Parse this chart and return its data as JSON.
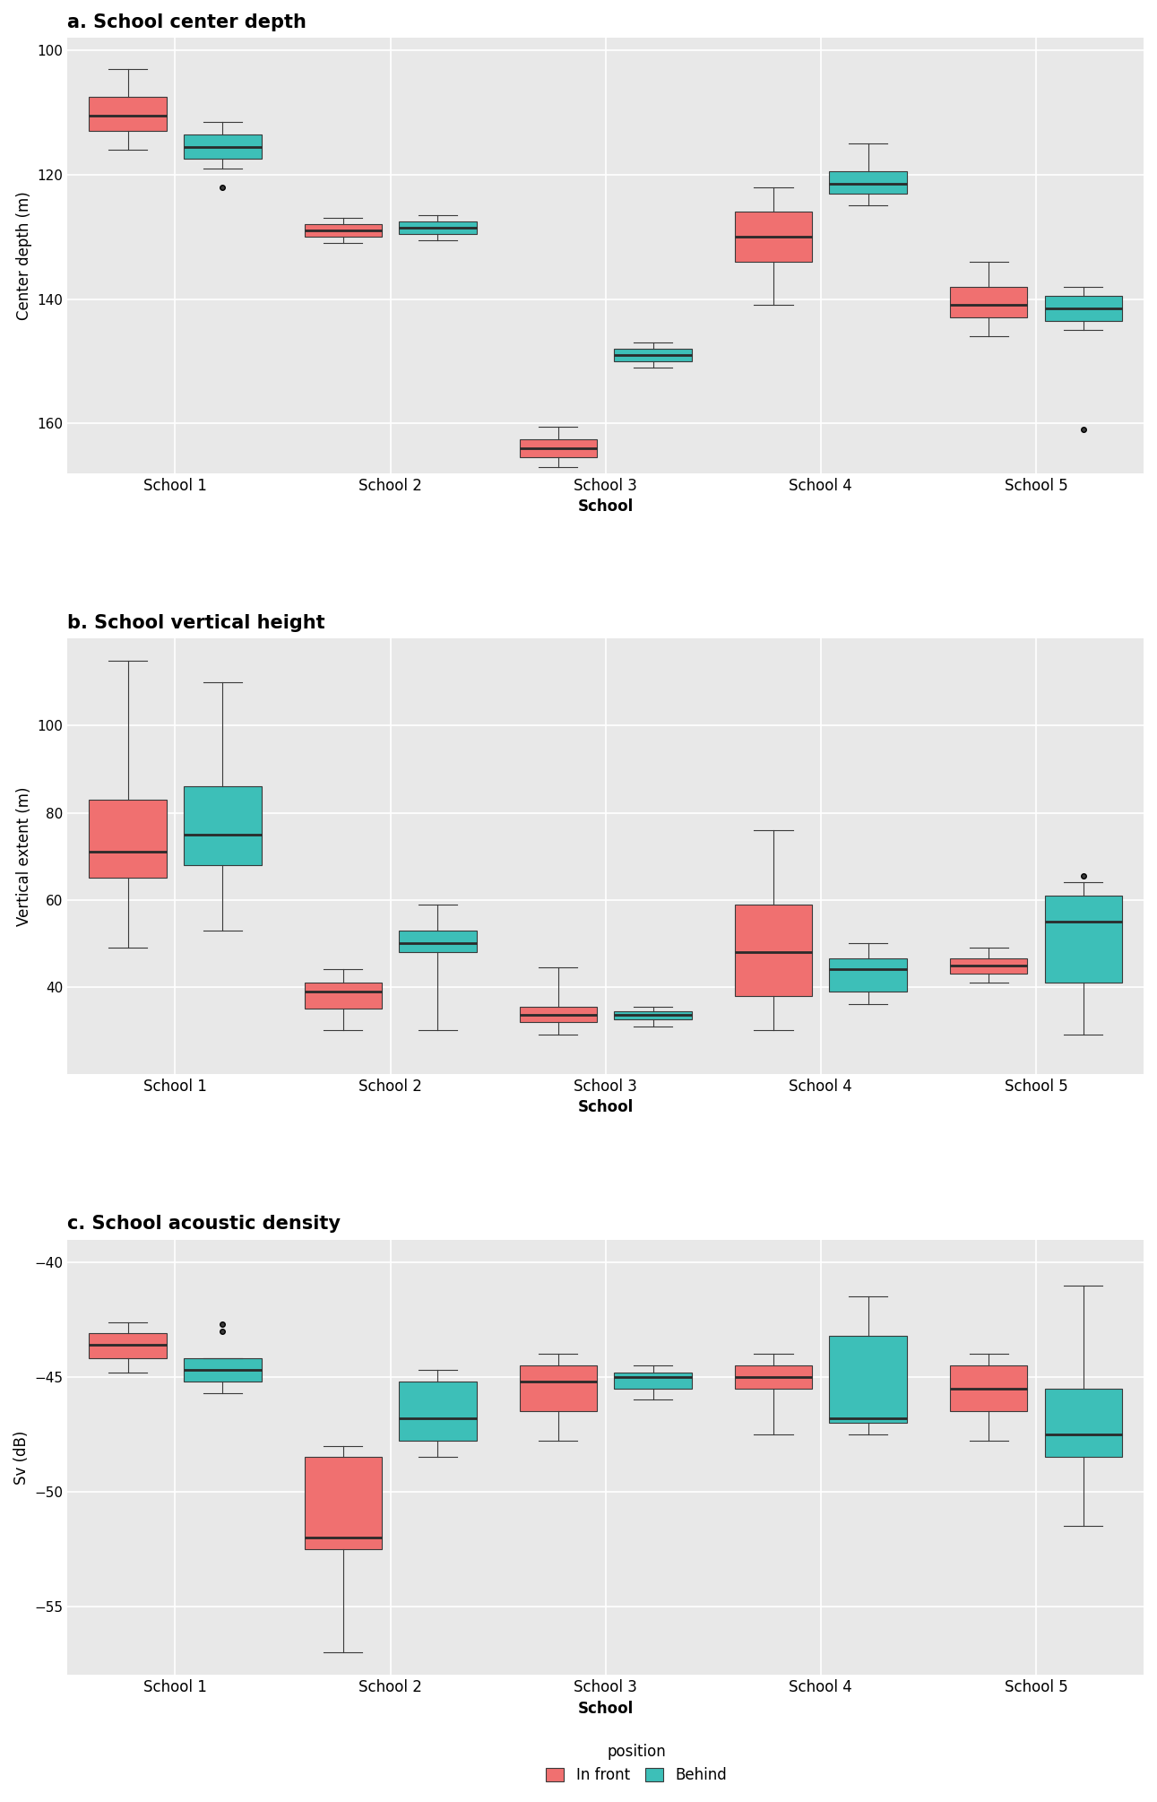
{
  "title_a": "a. School center depth",
  "title_b": "b. School vertical height",
  "title_c": "c. School acoustic density",
  "ylabel_a": "Center depth (m)",
  "ylabel_b": "Vertical extent (m)",
  "ylabel_c": "Sv (dB)",
  "xlabel": "School",
  "schools": [
    "School 1",
    "School 2",
    "School 3",
    "School 4",
    "School 5"
  ],
  "color_infront": "#F07070",
  "color_behind": "#3DBFB8",
  "legend_title": "position",
  "legend_labels": [
    "In front",
    "Behind"
  ],
  "background_color": "#E8E8E8",
  "depth": {
    "infront": {
      "School 1": {
        "q1": 107.5,
        "median": 110.5,
        "q3": 113.0,
        "whislo": 103.0,
        "whishi": 116.0,
        "fliers": []
      },
      "School 2": {
        "q1": 128.0,
        "median": 129.0,
        "q3": 130.0,
        "whislo": 127.0,
        "whishi": 131.0,
        "fliers": []
      },
      "School 3": {
        "q1": 162.5,
        "median": 164.0,
        "q3": 165.5,
        "whislo": 160.5,
        "whishi": 167.0,
        "fliers": []
      },
      "School 4": {
        "q1": 126.0,
        "median": 130.0,
        "q3": 134.0,
        "whislo": 122.0,
        "whishi": 141.0,
        "fliers": []
      },
      "School 5": {
        "q1": 138.0,
        "median": 141.0,
        "q3": 143.0,
        "whislo": 134.0,
        "whishi": 146.0,
        "fliers": []
      }
    },
    "behind": {
      "School 1": {
        "q1": 113.5,
        "median": 115.5,
        "q3": 117.5,
        "whislo": 111.5,
        "whishi": 119.0,
        "fliers": [
          122.0
        ]
      },
      "School 2": {
        "q1": 127.5,
        "median": 128.5,
        "q3": 129.5,
        "whislo": 126.5,
        "whishi": 130.5,
        "fliers": []
      },
      "School 3": {
        "q1": 148.0,
        "median": 149.0,
        "q3": 150.0,
        "whislo": 147.0,
        "whishi": 151.0,
        "fliers": []
      },
      "School 4": {
        "q1": 119.5,
        "median": 121.5,
        "q3": 123.0,
        "whislo": 115.0,
        "whishi": 125.0,
        "fliers": []
      },
      "School 5": {
        "q1": 139.5,
        "median": 141.5,
        "q3": 143.5,
        "whislo": 138.0,
        "whishi": 145.0,
        "fliers": [
          161.0
        ]
      }
    }
  },
  "height": {
    "infront": {
      "School 1": {
        "q1": 65.0,
        "median": 71.0,
        "q3": 83.0,
        "whislo": 49.0,
        "whishi": 115.0,
        "fliers": []
      },
      "School 2": {
        "q1": 35.0,
        "median": 39.0,
        "q3": 41.0,
        "whislo": 30.0,
        "whishi": 44.0,
        "fliers": []
      },
      "School 3": {
        "q1": 32.0,
        "median": 33.5,
        "q3": 35.5,
        "whislo": 29.0,
        "whishi": 44.5,
        "fliers": []
      },
      "School 4": {
        "q1": 38.0,
        "median": 48.0,
        "q3": 59.0,
        "whislo": 30.0,
        "whishi": 76.0,
        "fliers": []
      },
      "School 5": {
        "q1": 43.0,
        "median": 45.0,
        "q3": 46.5,
        "whislo": 41.0,
        "whishi": 49.0,
        "fliers": []
      }
    },
    "behind": {
      "School 1": {
        "q1": 68.0,
        "median": 75.0,
        "q3": 86.0,
        "whislo": 53.0,
        "whishi": 110.0,
        "fliers": []
      },
      "School 2": {
        "q1": 48.0,
        "median": 50.0,
        "q3": 53.0,
        "whislo": 30.0,
        "whishi": 59.0,
        "fliers": []
      },
      "School 3": {
        "q1": 32.5,
        "median": 33.5,
        "q3": 34.5,
        "whislo": 31.0,
        "whishi": 35.5,
        "fliers": []
      },
      "School 4": {
        "q1": 39.0,
        "median": 44.0,
        "q3": 46.5,
        "whislo": 36.0,
        "whishi": 50.0,
        "fliers": []
      },
      "School 5": {
        "q1": 41.0,
        "median": 55.0,
        "q3": 61.0,
        "whislo": 29.0,
        "whishi": 64.0,
        "fliers": [
          65.5
        ]
      }
    }
  },
  "acoustic": {
    "infront": {
      "School 1": {
        "q1": -44.2,
        "median": -43.6,
        "q3": -43.1,
        "whislo": -44.8,
        "whishi": -42.6,
        "fliers": []
      },
      "School 2": {
        "q1": -52.5,
        "median": -52.0,
        "q3": -48.5,
        "whislo": -57.0,
        "whishi": -48.0,
        "fliers": []
      },
      "School 3": {
        "q1": -46.5,
        "median": -45.2,
        "q3": -44.5,
        "whislo": -47.8,
        "whishi": -44.0,
        "fliers": []
      },
      "School 4": {
        "q1": -45.5,
        "median": -45.0,
        "q3": -44.5,
        "whislo": -47.5,
        "whishi": -44.0,
        "fliers": []
      },
      "School 5": {
        "q1": -46.5,
        "median": -45.5,
        "q3": -44.5,
        "whislo": -47.8,
        "whishi": -44.0,
        "fliers": []
      }
    },
    "behind": {
      "School 1": {
        "q1": -45.2,
        "median": -44.7,
        "q3": -44.2,
        "whislo": -45.7,
        "whishi": -44.2,
        "fliers": [
          -43.0,
          -42.7
        ]
      },
      "School 2": {
        "q1": -47.8,
        "median": -46.8,
        "q3": -45.2,
        "whislo": -48.5,
        "whishi": -44.7,
        "fliers": []
      },
      "School 3": {
        "q1": -45.5,
        "median": -45.0,
        "q3": -44.8,
        "whislo": -46.0,
        "whishi": -44.5,
        "fliers": []
      },
      "School 4": {
        "q1": -47.0,
        "median": -46.8,
        "q3": -43.2,
        "whislo": -47.5,
        "whishi": -41.5,
        "fliers": []
      },
      "School 5": {
        "q1": -48.5,
        "median": -47.5,
        "q3": -45.5,
        "whislo": -51.5,
        "whishi": -41.0,
        "fliers": []
      }
    }
  },
  "ylim_a": [
    98,
    168
  ],
  "yticks_a": [
    100,
    120,
    140,
    160
  ],
  "invert_a": true,
  "ylim_b": [
    20,
    120
  ],
  "yticks_b": [
    40,
    60,
    80,
    100
  ],
  "invert_b": false,
  "ylim_c": [
    -58,
    -39
  ],
  "yticks_c": [
    -55,
    -50,
    -45,
    -40
  ]
}
